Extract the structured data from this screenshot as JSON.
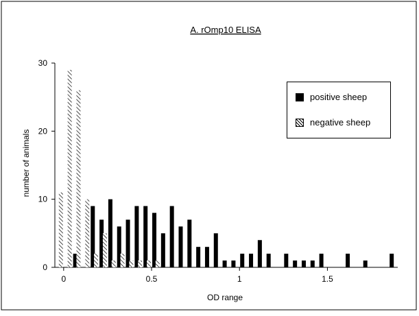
{
  "chart_data": {
    "type": "bar",
    "title": "A. rOmp10 ELISA",
    "xlabel": "OD range",
    "ylabel": "number of animals",
    "xlim": [
      -0.05,
      1.9
    ],
    "ylim": [
      0,
      30
    ],
    "x_ticks": [
      0,
      0.5,
      1,
      1.5
    ],
    "y_ticks": [
      0,
      10,
      20,
      30
    ],
    "x_tick_labels": [
      "0",
      "0.5",
      "1",
      "1.5"
    ],
    "y_tick_labels": [
      "0",
      "10",
      "20",
      "30"
    ],
    "grid": false,
    "legend_position": "top-right",
    "series": [
      {
        "name": "positive sheep",
        "color": "#000000",
        "pattern": "solid",
        "points": [
          [
            0.05,
            2
          ],
          [
            0.15,
            9
          ],
          [
            0.2,
            7
          ],
          [
            0.25,
            10
          ],
          [
            0.3,
            6
          ],
          [
            0.35,
            7
          ],
          [
            0.4,
            9
          ],
          [
            0.45,
            9
          ],
          [
            0.5,
            8
          ],
          [
            0.55,
            5
          ],
          [
            0.6,
            9
          ],
          [
            0.65,
            6
          ],
          [
            0.7,
            7
          ],
          [
            0.75,
            3
          ],
          [
            0.8,
            3
          ],
          [
            0.85,
            5
          ],
          [
            0.9,
            1
          ],
          [
            0.95,
            1
          ],
          [
            1.0,
            2
          ],
          [
            1.05,
            2
          ],
          [
            1.1,
            4
          ],
          [
            1.15,
            2
          ],
          [
            1.25,
            2
          ],
          [
            1.3,
            1
          ],
          [
            1.35,
            1
          ],
          [
            1.4,
            1
          ],
          [
            1.45,
            2
          ],
          [
            1.6,
            2
          ],
          [
            1.7,
            1
          ],
          [
            1.85,
            2
          ]
        ]
      },
      {
        "name": "negative sheep",
        "color": "#000000",
        "pattern": "diagonal-hatch",
        "points": [
          [
            0.0,
            11
          ],
          [
            0.05,
            29
          ],
          [
            0.1,
            26
          ],
          [
            0.15,
            10
          ],
          [
            0.2,
            2
          ],
          [
            0.25,
            5
          ],
          [
            0.3,
            1
          ],
          [
            0.35,
            2
          ],
          [
            0.4,
            1
          ],
          [
            0.45,
            1
          ],
          [
            0.5,
            1
          ],
          [
            0.55,
            1
          ]
        ]
      }
    ]
  }
}
